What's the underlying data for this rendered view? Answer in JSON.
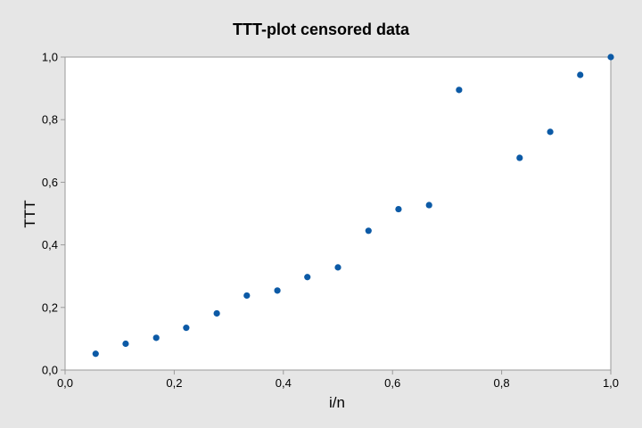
{
  "colors": {
    "background": "#e6e6e6",
    "plot_area": "#ffffff",
    "marker": "#0c5aa6",
    "axis": "#9a9a9a",
    "text": "#000000"
  },
  "chart_data": {
    "type": "scatter",
    "title": "TTT-plot censored data",
    "xlabel": "i/n",
    "ylabel": "TTT",
    "xlim": [
      0.0,
      1.0
    ],
    "ylim": [
      0.0,
      1.0
    ],
    "xticks": [
      "0,0",
      "0,2",
      "0,4",
      "0,6",
      "0,8",
      "1,0"
    ],
    "yticks": [
      "0,0",
      "0,2",
      "0,4",
      "0,6",
      "0,8",
      "1,0"
    ],
    "grid": false,
    "legend": "none",
    "x": [
      0.056,
      0.111,
      0.167,
      0.222,
      0.278,
      0.333,
      0.389,
      0.444,
      0.5,
      0.556,
      0.611,
      0.667,
      0.722,
      0.833,
      0.889,
      0.944,
      1.0
    ],
    "y": [
      0.052,
      0.084,
      0.103,
      0.135,
      0.181,
      0.238,
      0.254,
      0.297,
      0.328,
      0.445,
      0.514,
      0.527,
      0.895,
      0.678,
      0.761,
      0.943,
      1.0
    ]
  }
}
